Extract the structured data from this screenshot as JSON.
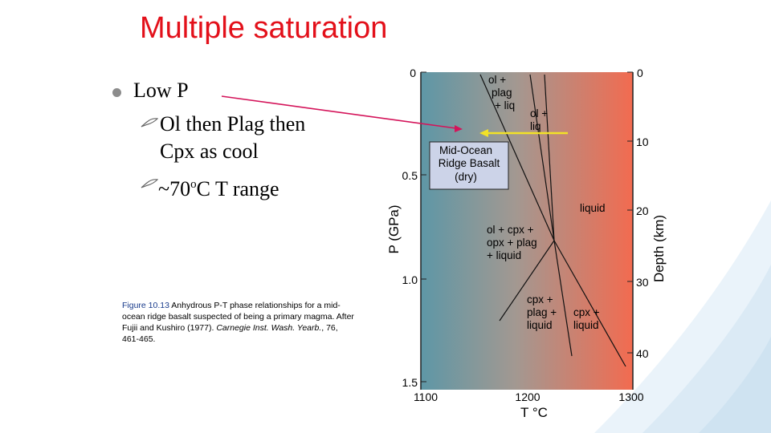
{
  "title": "Multiple saturation",
  "bullets": {
    "main": "Low P",
    "sub1_line1": "Ol then Plag then",
    "sub1_line2": "Cpx as cool",
    "sub2_pre": "~70",
    "sub2_sup": "o",
    "sub2_post": "C T range"
  },
  "caption": {
    "figure_label": "Figure 10.13",
    "text": " Anhydrous P-T phase relationships for a mid-ocean ridge basalt suspected of being a primary magma. After Fujii and Kushiro (1977). ",
    "source_italic": "Carnegie Inst. Wash. Yearb.",
    "source_tail": ", 76, 461-465."
  },
  "diagram": {
    "y_axis_label": "P (GPa)",
    "y_ticks": [
      "0",
      "0.5",
      "1.0",
      "1.5"
    ],
    "x_ticks": [
      "1100",
      "1200",
      "1300"
    ],
    "x_axis_label": "T °C",
    "depth_label": "Depth (km)",
    "depth_ticks": [
      "0",
      "10",
      "20",
      "30",
      "40"
    ],
    "box_lines": [
      "Mid-Ocean",
      "Ridge Basalt",
      "(dry)"
    ],
    "labels": {
      "ol_plag_liq": [
        "ol +",
        "plag",
        "+ liq"
      ],
      "ol_liq": [
        "ol +",
        "liq"
      ],
      "liquid": "liquid",
      "ol_cpx": [
        "ol + cpx +",
        "opx + plag",
        "+ liquid"
      ],
      "cpx_plag": [
        "cpx +",
        "plag +",
        "liquid"
      ],
      "cpx_liq": [
        "cpx +",
        "liquid"
      ]
    },
    "colors": {
      "cool": "#5e97a6",
      "hot": "#f26b50",
      "arrow_pink": "#d4145a",
      "arrow_yellow": "#f2e227"
    }
  }
}
